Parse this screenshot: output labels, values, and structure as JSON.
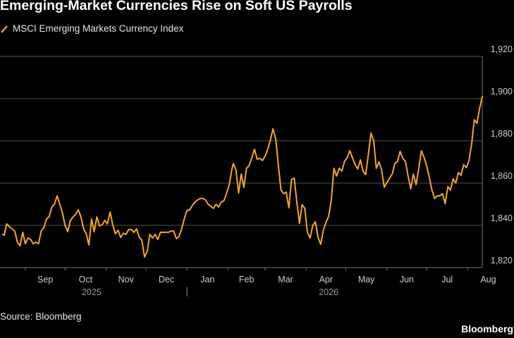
{
  "title": "Emerging-Market Currencies Rise on Soft US Payrolls",
  "source": "Source: Bloomberg",
  "brand": "Bloomberg",
  "colors": {
    "background": "#000000",
    "series": "#f5a623",
    "grid": "#555555",
    "text": "#e6e6e6"
  },
  "chart_data": {
    "type": "line",
    "title": "Emerging-Market Currencies Rise on Soft US Payrolls",
    "xlabel": "",
    "ylabel": "",
    "ylim": [
      1820,
      1920
    ],
    "yticks": [
      1820,
      1840,
      1860,
      1880,
      1900,
      1920
    ],
    "ytick_labels": [
      "1,820",
      "1,840",
      "1,860",
      "1,880",
      "1,900",
      "1,920"
    ],
    "y_axis_position": "right",
    "grid": true,
    "legend_position": "top-left",
    "xlim": [
      "2025-08-15",
      "2026-08-12"
    ],
    "x_months": [
      "Sep",
      "Oct",
      "Nov",
      "Dec",
      "Jan",
      "Feb",
      "Mar",
      "Apr",
      "May",
      "Jun",
      "Jul",
      "Aug"
    ],
    "x_month_dates": [
      "2025-09-01",
      "2025-10-01",
      "2025-11-01",
      "2025-12-01",
      "2026-01-01",
      "2026-02-01",
      "2026-03-01",
      "2026-04-01",
      "2026-05-01",
      "2026-06-01",
      "2026-07-01",
      "2026-08-01"
    ],
    "x_years": [
      {
        "label": "2025",
        "date": "2025-10-21"
      },
      {
        "label": "2026",
        "date": "2026-04-18"
      }
    ],
    "year_separator_date": "2026-01-01",
    "series": [
      {
        "name": "MSCI Emerging Markets Currency Index",
        "points": [
          [
            "2025-08-15",
            1835.7
          ],
          [
            "2025-08-16",
            1835.3
          ],
          [
            "2025-08-18",
            1840.7
          ],
          [
            "2025-08-20",
            1839.3
          ],
          [
            "2025-08-22",
            1838.3
          ],
          [
            "2025-08-24",
            1837.3
          ],
          [
            "2025-08-26",
            1832.0
          ],
          [
            "2025-08-28",
            1830.3
          ],
          [
            "2025-08-30",
            1836.7
          ],
          [
            "2025-09-01",
            1831.3
          ],
          [
            "2025-09-03",
            1834.0
          ],
          [
            "2025-09-05",
            1833.3
          ],
          [
            "2025-09-07",
            1831.3
          ],
          [
            "2025-09-09",
            1832.0
          ],
          [
            "2025-09-11",
            1831.3
          ],
          [
            "2025-09-13",
            1837.3
          ],
          [
            "2025-09-15",
            1839.0
          ],
          [
            "2025-09-17",
            1843.0
          ],
          [
            "2025-09-19",
            1844.0
          ],
          [
            "2025-09-21",
            1848.7
          ],
          [
            "2025-09-23",
            1850.0
          ],
          [
            "2025-09-25",
            1854.0
          ],
          [
            "2025-09-27",
            1850.0
          ],
          [
            "2025-09-29",
            1846.0
          ],
          [
            "2025-10-01",
            1840.0
          ],
          [
            "2025-10-03",
            1837.0
          ],
          [
            "2025-10-05",
            1842.3
          ],
          [
            "2025-10-07",
            1844.0
          ],
          [
            "2025-10-09",
            1845.3
          ],
          [
            "2025-10-11",
            1847.3
          ],
          [
            "2025-10-13",
            1844.0
          ],
          [
            "2025-10-15",
            1838.3
          ],
          [
            "2025-10-17",
            1836.0
          ],
          [
            "2025-10-19",
            1830.7
          ],
          [
            "2025-10-21",
            1843.0
          ],
          [
            "2025-10-23",
            1837.0
          ],
          [
            "2025-10-25",
            1844.0
          ],
          [
            "2025-10-27",
            1839.7
          ],
          [
            "2025-10-29",
            1840.3
          ],
          [
            "2025-10-31",
            1842.3
          ],
          [
            "2025-11-02",
            1840.7
          ],
          [
            "2025-11-04",
            1846.3
          ],
          [
            "2025-11-06",
            1840.3
          ],
          [
            "2025-11-08",
            1836.0
          ],
          [
            "2025-11-10",
            1837.7
          ],
          [
            "2025-11-12",
            1834.3
          ],
          [
            "2025-11-14",
            1836.3
          ],
          [
            "2025-11-16",
            1835.7
          ],
          [
            "2025-11-18",
            1838.0
          ],
          [
            "2025-11-20",
            1838.0
          ],
          [
            "2025-11-22",
            1836.7
          ],
          [
            "2025-11-24",
            1838.3
          ],
          [
            "2025-11-26",
            1834.3
          ],
          [
            "2025-11-28",
            1833.0
          ],
          [
            "2025-11-30",
            1825.0
          ],
          [
            "2025-12-02",
            1827.7
          ],
          [
            "2025-12-04",
            1835.7
          ],
          [
            "2025-12-06",
            1834.0
          ],
          [
            "2025-12-08",
            1835.7
          ],
          [
            "2025-12-10",
            1833.3
          ],
          [
            "2025-12-12",
            1836.7
          ],
          [
            "2025-12-14",
            1836.7
          ],
          [
            "2025-12-16",
            1836.7
          ],
          [
            "2025-12-18",
            1836.7
          ],
          [
            "2025-12-20",
            1837.3
          ],
          [
            "2025-12-22",
            1837.3
          ],
          [
            "2025-12-24",
            1833.7
          ],
          [
            "2025-12-26",
            1834.7
          ],
          [
            "2025-12-28",
            1838.3
          ],
          [
            "2025-12-30",
            1843.0
          ],
          [
            "2026-01-01",
            1847.0
          ],
          [
            "2026-01-03",
            1847.3
          ],
          [
            "2026-01-05",
            1849.3
          ],
          [
            "2026-01-07",
            1851.0
          ],
          [
            "2026-01-09",
            1852.0
          ],
          [
            "2026-01-11",
            1852.7
          ],
          [
            "2026-01-13",
            1852.7
          ],
          [
            "2026-01-15",
            1852.0
          ],
          [
            "2026-01-17",
            1850.0
          ],
          [
            "2026-01-19",
            1849.0
          ],
          [
            "2026-01-21",
            1848.0
          ],
          [
            "2026-01-23",
            1850.0
          ],
          [
            "2026-01-25",
            1848.7
          ],
          [
            "2026-01-27",
            1851.0
          ],
          [
            "2026-01-29",
            1851.7
          ],
          [
            "2026-01-31",
            1855.3
          ],
          [
            "2026-02-02",
            1859.3
          ],
          [
            "2026-02-04",
            1866.7
          ],
          [
            "2026-02-05",
            1869.3
          ],
          [
            "2026-02-07",
            1866.3
          ],
          [
            "2026-02-09",
            1855.3
          ],
          [
            "2026-02-11",
            1864.3
          ],
          [
            "2026-02-13",
            1858.0
          ],
          [
            "2026-02-15",
            1867.0
          ],
          [
            "2026-02-17",
            1868.3
          ],
          [
            "2026-02-19",
            1872.0
          ],
          [
            "2026-02-21",
            1876.0
          ],
          [
            "2026-02-23",
            1871.3
          ],
          [
            "2026-02-25",
            1871.7
          ],
          [
            "2026-02-27",
            1870.7
          ],
          [
            "2026-03-01",
            1872.7
          ],
          [
            "2026-03-03",
            1876.0
          ],
          [
            "2026-03-05",
            1880.3
          ],
          [
            "2026-03-07",
            1885.7
          ],
          [
            "2026-03-09",
            1881.0
          ],
          [
            "2026-03-11",
            1868.7
          ],
          [
            "2026-03-13",
            1856.7
          ],
          [
            "2026-03-15",
            1855.0
          ],
          [
            "2026-03-17",
            1855.7
          ],
          [
            "2026-03-19",
            1848.3
          ],
          [
            "2026-03-21",
            1861.7
          ],
          [
            "2026-03-23",
            1862.3
          ],
          [
            "2026-03-25",
            1851.0
          ],
          [
            "2026-03-27",
            1841.0
          ],
          [
            "2026-03-29",
            1849.7
          ],
          [
            "2026-03-31",
            1848.0
          ],
          [
            "2026-04-02",
            1836.7
          ],
          [
            "2026-04-04",
            1834.0
          ],
          [
            "2026-04-06",
            1840.0
          ],
          [
            "2026-04-08",
            1841.7
          ],
          [
            "2026-04-10",
            1834.3
          ],
          [
            "2026-04-12",
            1831.0
          ],
          [
            "2026-04-14",
            1837.7
          ],
          [
            "2026-04-16",
            1841.3
          ],
          [
            "2026-04-18",
            1844.3
          ],
          [
            "2026-04-20",
            1852.0
          ],
          [
            "2026-04-22",
            1867.0
          ],
          [
            "2026-04-24",
            1863.3
          ],
          [
            "2026-04-26",
            1867.0
          ],
          [
            "2026-04-28",
            1865.7
          ],
          [
            "2026-04-30",
            1870.3
          ],
          [
            "2026-05-02",
            1872.0
          ],
          [
            "2026-05-04",
            1875.3
          ],
          [
            "2026-05-06",
            1872.0
          ],
          [
            "2026-05-08",
            1868.7
          ],
          [
            "2026-05-10",
            1866.7
          ],
          [
            "2026-05-12",
            1871.0
          ],
          [
            "2026-05-14",
            1865.7
          ],
          [
            "2026-05-16",
            1864.0
          ],
          [
            "2026-05-18",
            1873.7
          ],
          [
            "2026-05-20",
            1883.7
          ],
          [
            "2026-05-22",
            1880.0
          ],
          [
            "2026-05-24",
            1867.0
          ],
          [
            "2026-05-26",
            1870.0
          ],
          [
            "2026-05-28",
            1866.3
          ],
          [
            "2026-05-30",
            1858.0
          ],
          [
            "2026-06-01",
            1860.3
          ],
          [
            "2026-06-03",
            1862.3
          ],
          [
            "2026-06-05",
            1864.3
          ],
          [
            "2026-06-07",
            1869.3
          ],
          [
            "2026-06-09",
            1870.3
          ],
          [
            "2026-06-11",
            1875.0
          ],
          [
            "2026-06-13",
            1871.7
          ],
          [
            "2026-06-15",
            1870.3
          ],
          [
            "2026-06-17",
            1863.3
          ],
          [
            "2026-06-19",
            1857.3
          ],
          [
            "2026-06-21",
            1864.3
          ],
          [
            "2026-06-23",
            1859.3
          ],
          [
            "2026-06-25",
            1866.7
          ],
          [
            "2026-06-27",
            1875.3
          ],
          [
            "2026-06-29",
            1872.3
          ],
          [
            "2026-07-01",
            1868.3
          ],
          [
            "2026-07-03",
            1862.7
          ],
          [
            "2026-07-05",
            1856.7
          ],
          [
            "2026-07-07",
            1852.7
          ],
          [
            "2026-07-09",
            1854.0
          ],
          [
            "2026-07-11",
            1854.0
          ],
          [
            "2026-07-13",
            1855.0
          ],
          [
            "2026-07-15",
            1850.3
          ],
          [
            "2026-07-17",
            1858.3
          ],
          [
            "2026-07-19",
            1856.7
          ],
          [
            "2026-07-21",
            1862.0
          ],
          [
            "2026-07-23",
            1860.0
          ],
          [
            "2026-07-25",
            1865.0
          ],
          [
            "2026-07-27",
            1863.7
          ],
          [
            "2026-07-29",
            1868.7
          ],
          [
            "2026-07-31",
            1867.3
          ],
          [
            "2026-08-02",
            1870.7
          ],
          [
            "2026-08-04",
            1878.7
          ],
          [
            "2026-08-06",
            1890.0
          ],
          [
            "2026-08-08",
            1888.3
          ],
          [
            "2026-08-10",
            1895.3
          ],
          [
            "2026-08-12",
            1901.0
          ]
        ]
      }
    ]
  }
}
